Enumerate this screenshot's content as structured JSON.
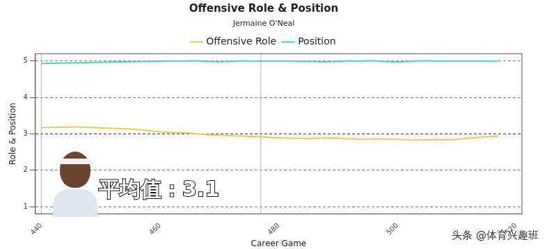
{
  "chart_data": {
    "type": "line",
    "title": "Offensive Role & Position",
    "subtitle": "Jermaine O'Neal",
    "x_label": "Career Game",
    "y_label": "Role & Position",
    "x": [
      440,
      443,
      446,
      449,
      452,
      455,
      458,
      461,
      464,
      467,
      470,
      473,
      476,
      479,
      482,
      485,
      488,
      491,
      494,
      497,
      500,
      503,
      506,
      509,
      512,
      515,
      517
    ],
    "series": [
      {
        "name": "Offensive Role",
        "color": "#f0c94a",
        "values": [
          3.17,
          3.18,
          3.19,
          3.17,
          3.15,
          3.13,
          3.09,
          3.05,
          3.03,
          2.99,
          2.96,
          2.94,
          2.93,
          2.9,
          2.88,
          2.87,
          2.89,
          2.87,
          2.85,
          2.86,
          2.85,
          2.83,
          2.84,
          2.84,
          2.88,
          2.92,
          2.94
        ]
      },
      {
        "name": "Position",
        "color": "#3fd9b8",
        "values": [
          4.93,
          4.94,
          4.95,
          4.96,
          4.97,
          4.98,
          4.99,
          5.0,
          5.0,
          5.0,
          4.98,
          5.0,
          5.0,
          5.0,
          5.0,
          4.99,
          4.98,
          5.0,
          5.0,
          5.0,
          4.97,
          5.0,
          5.0,
          5.0,
          5.0,
          5.0,
          5.0
        ]
      }
    ],
    "xlim": [
      439,
      521
    ],
    "xticks": [
      440,
      460,
      480,
      500,
      520
    ],
    "ylim": [
      0.8,
      5.2
    ],
    "yticks": [
      1,
      2,
      3,
      4,
      5
    ],
    "vlines": [
      440,
      477
    ],
    "grid": true,
    "legend": "top",
    "annotations": [
      {
        "text": "平均值：3.1"
      }
    ],
    "watermark": "头条 @体育兴趣班"
  }
}
